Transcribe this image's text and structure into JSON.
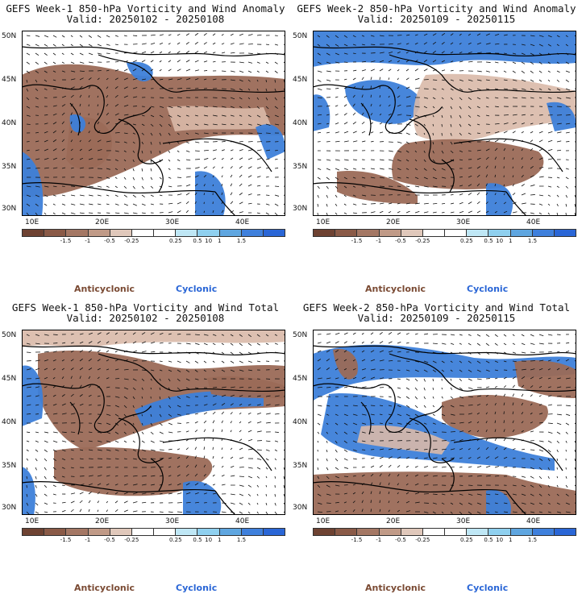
{
  "panels": [
    {
      "id": "p1",
      "title": "GEFS Week-1 850-hPa Vorticity and Wind Anomaly",
      "valid": "Valid: 20250102 - 20250108",
      "pattern": 0
    },
    {
      "id": "p2",
      "title": "GEFS Week-2 850-hPa Vorticity and Wind Anomaly",
      "valid": "Valid: 20250109 - 20250115",
      "pattern": 1
    },
    {
      "id": "p3",
      "title": "GEFS Week-1 850-hPa Vorticity and Wind Total",
      "valid": "Valid: 20250102 - 20250108",
      "pattern": 2
    },
    {
      "id": "p4",
      "title": "GEFS Week-2 850-hPa Vorticity and Wind Total",
      "valid": "Valid: 20250109 - 20250115",
      "pattern": 3
    }
  ],
  "axes": {
    "lat_labels": [
      "50N",
      "45N",
      "40N",
      "35N",
      "30N"
    ],
    "lon_labels": [
      "10E",
      "20E",
      "30E",
      "40E"
    ]
  },
  "colorbar": {
    "labels": [
      "-1.5",
      "-1",
      "-0.5",
      "-0.25",
      "0.25",
      "0.5",
      "1",
      "1.5"
    ],
    "scale_note": "10",
    "colors": [
      "#6e4232",
      "#8a5a47",
      "#a47764",
      "#c09a87",
      "#e0c8bb",
      "#ffffff",
      "#ffffff",
      "#bfe7f5",
      "#8fd0ef",
      "#5fa6e0",
      "#3f80dc",
      "#2a66d6"
    ]
  },
  "legend": {
    "anticyclonic": "Anticyclonic",
    "cyclonic": "Cyclonic"
  },
  "colors": {
    "brown": "#9b6a57",
    "light_brown": "#d9b9a8",
    "blue": "#3d7fd9",
    "light_blue": "#8fc7ef"
  }
}
